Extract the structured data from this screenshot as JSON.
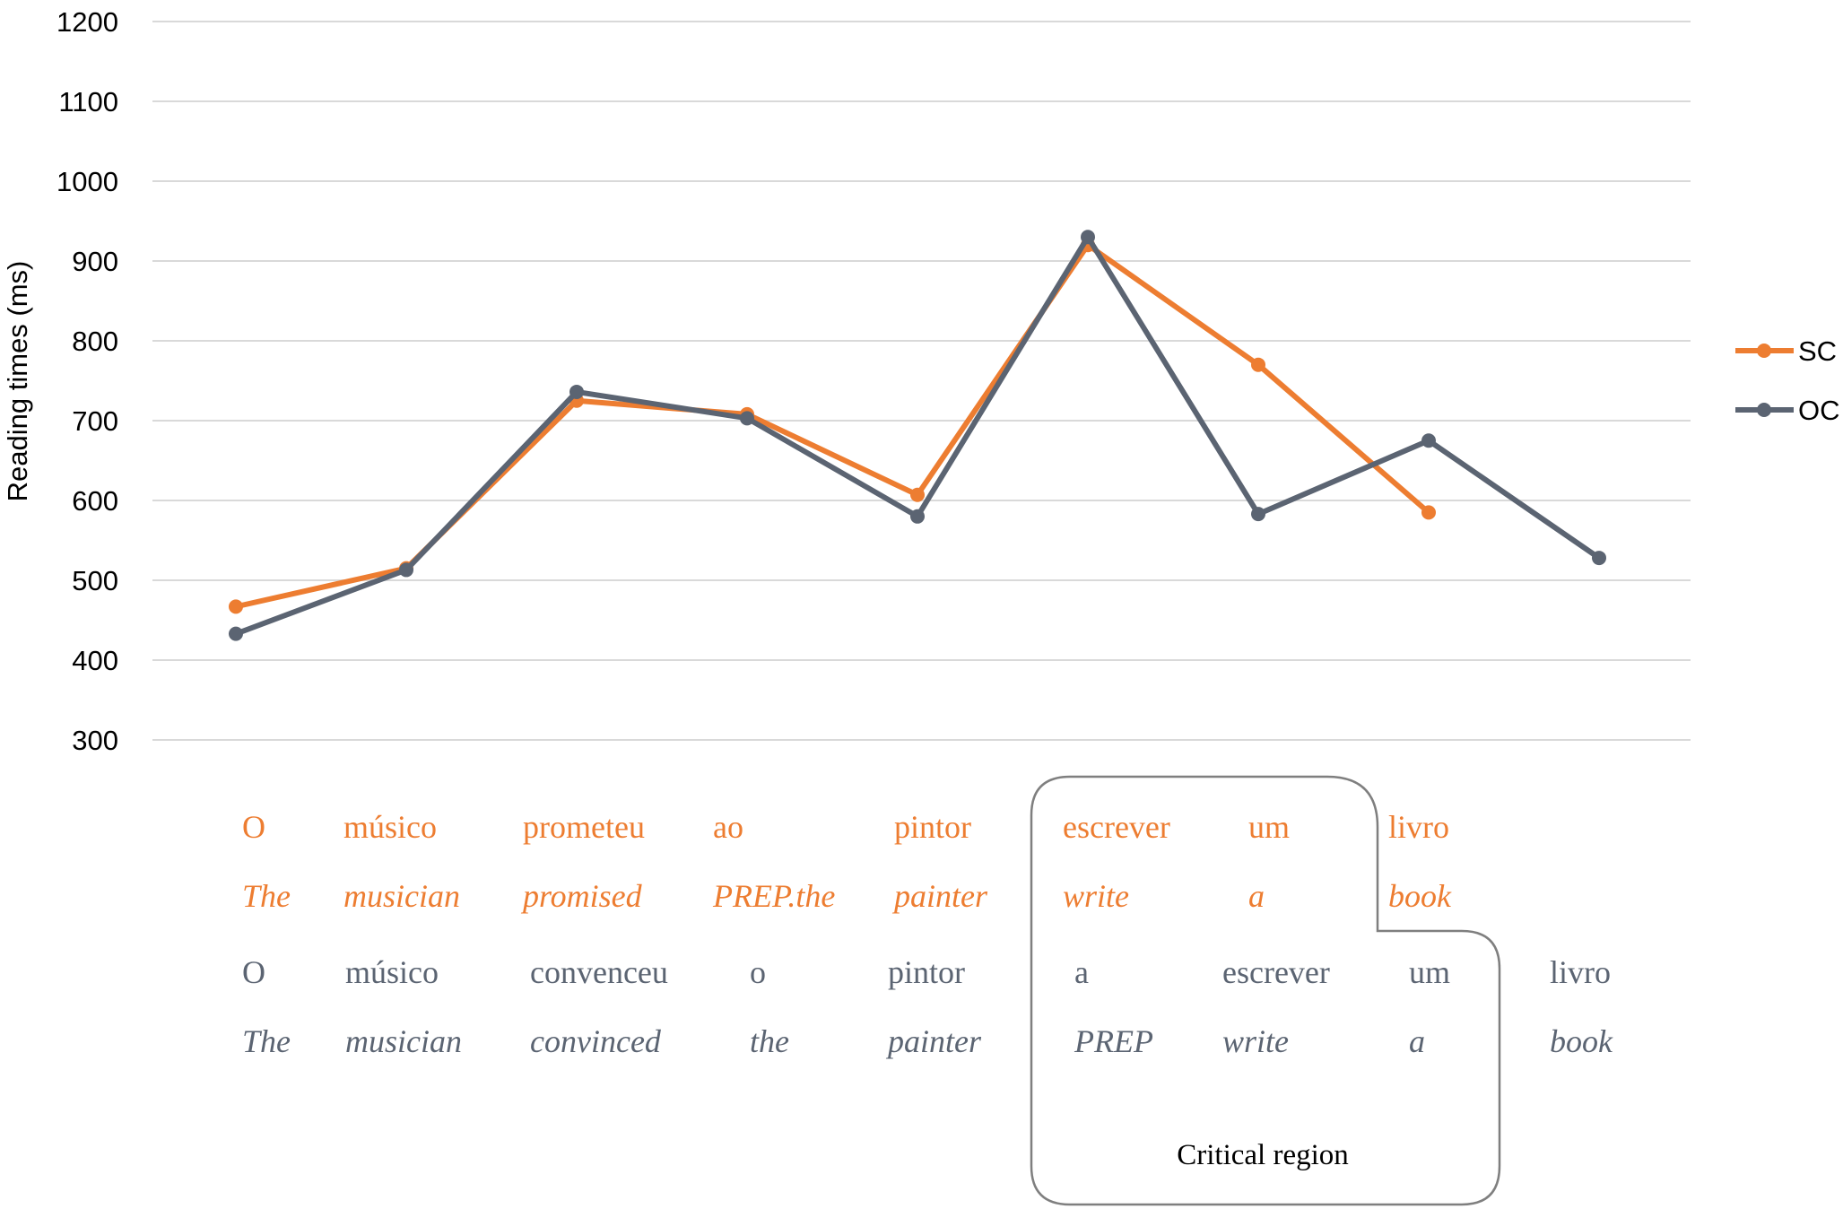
{
  "colors": {
    "sc": "#ed7d31",
    "oc": "#5b6472",
    "grid": "#d9d9d9"
  },
  "chart_data": {
    "type": "line",
    "title": "",
    "xlabel": "",
    "ylabel": "Reading times (ms)",
    "ylim": [
      300,
      1200
    ],
    "yticks": [
      1200,
      1100,
      1000,
      900,
      800,
      700,
      600,
      500,
      400,
      300
    ],
    "grid": true,
    "legend_position": "right",
    "series": [
      {
        "name": "SC",
        "color": "#ed7d31",
        "values": [
          467,
          515,
          725,
          708,
          607,
          920,
          770,
          585
        ]
      },
      {
        "name": "OC",
        "color": "#5b6472",
        "values": [
          433,
          513,
          736,
          703,
          580,
          930,
          583,
          675,
          528
        ]
      }
    ],
    "word_rows": [
      {
        "series": "SC",
        "kind": "word",
        "words": [
          "O",
          "músico",
          "prometeu",
          "ao",
          "pintor",
          "escrever",
          "um",
          "livro"
        ]
      },
      {
        "series": "SC",
        "kind": "gloss",
        "words": [
          "The",
          "musician",
          "promised",
          "PREP.the",
          "painter",
          "write",
          "a",
          "book"
        ]
      },
      {
        "series": "OC",
        "kind": "word",
        "words": [
          "O",
          "músico",
          "convenceu",
          "o",
          "pintor",
          "a",
          "escrever",
          "um",
          "livro"
        ]
      },
      {
        "series": "OC",
        "kind": "gloss",
        "words": [
          "The",
          "musician",
          "convinced",
          "the",
          "painter",
          "PREP",
          "write",
          "a",
          "book"
        ]
      }
    ],
    "annotation": "Critical region"
  }
}
